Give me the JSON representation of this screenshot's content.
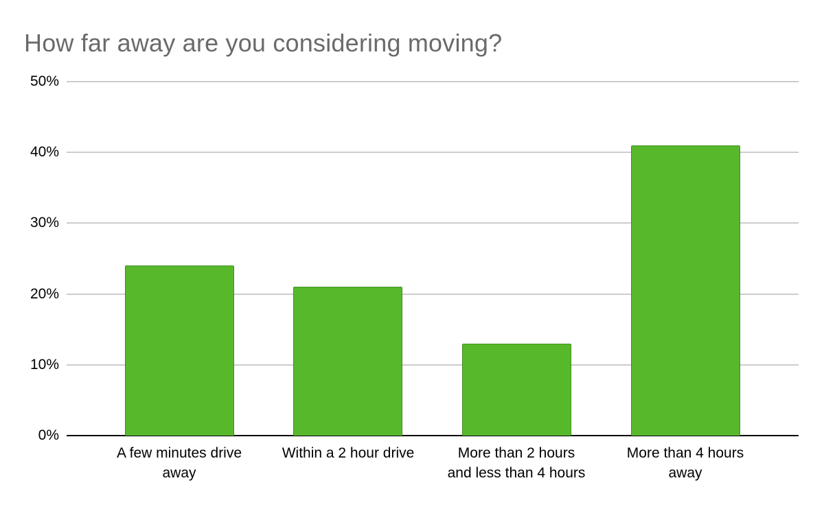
{
  "chart_data": {
    "type": "bar",
    "title": "How far away are you considering moving?",
    "categories": [
      "A few minutes drive away",
      "Within a 2 hour drive",
      "More than 2 hours and less than 4 hours",
      "More than 4 hours away"
    ],
    "categories_lines": [
      [
        "A few minutes drive",
        "away"
      ],
      [
        "Within a 2 hour drive"
      ],
      [
        "More than 2 hours",
        "and less than 4 hours"
      ],
      [
        "More than 4 hours",
        "away"
      ]
    ],
    "values": [
      24,
      21,
      13,
      41
    ],
    "unit": "%",
    "ylim": [
      0,
      50
    ],
    "ytick_step": 10,
    "ytick_labels": [
      "0%",
      "10%",
      "20%",
      "30%",
      "40%",
      "50%"
    ],
    "xlabel": "",
    "ylabel": "",
    "grid": true,
    "legend": "none"
  },
  "colors": {
    "background": "#ffffff",
    "bar_fill": "#58b82c",
    "bar_border": "#3e8f1d",
    "gridline": "#cccccc",
    "axis_line": "#000000",
    "tick_label_color": "#000000",
    "title_color": "#6a6a6a"
  }
}
